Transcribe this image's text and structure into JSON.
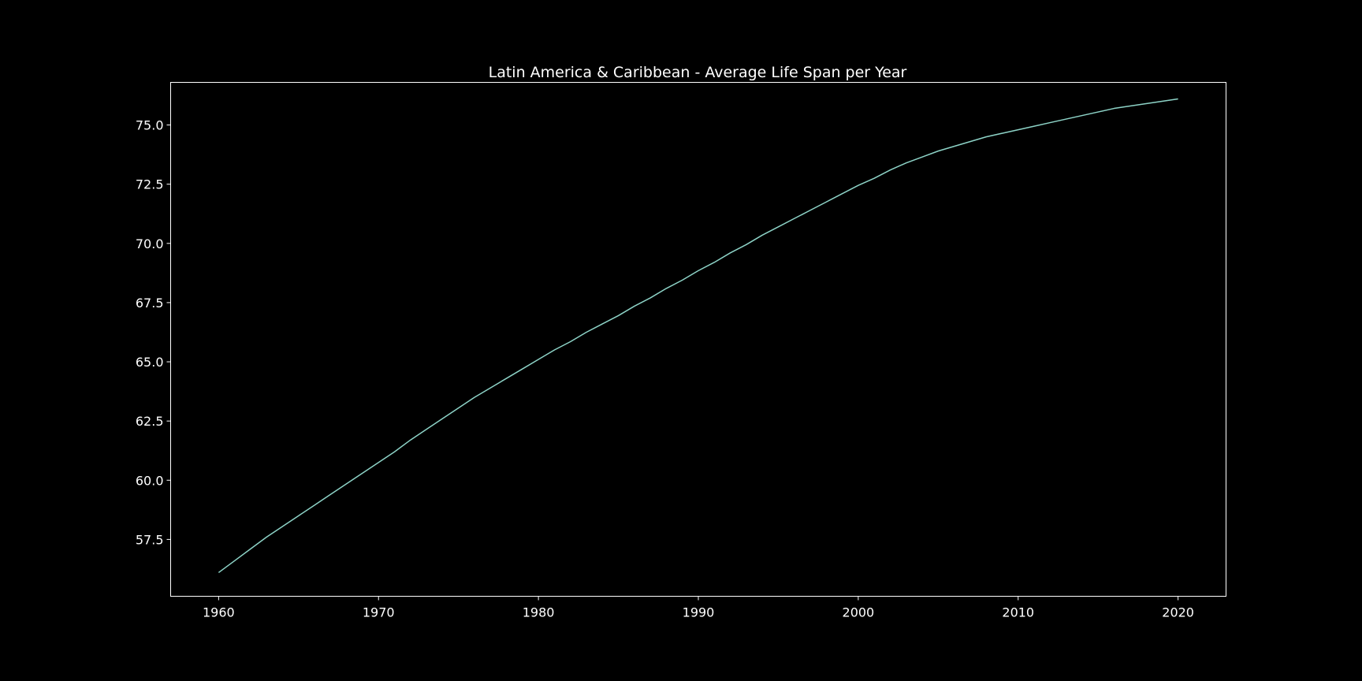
{
  "chart_data": {
    "type": "line",
    "title": "Latin America & Caribbean - Average Life Span per Year",
    "xlabel": "",
    "ylabel": "",
    "xlim": [
      1957,
      2023
    ],
    "ylim": [
      55.1,
      76.8
    ],
    "grid": false,
    "legend": "none",
    "x_ticks": [
      1960,
      1970,
      1980,
      1990,
      2000,
      2010,
      2020
    ],
    "x_tick_labels": [
      "1960",
      "1970",
      "1980",
      "1990",
      "2000",
      "2010",
      "2020"
    ],
    "y_ticks": [
      57.5,
      60.0,
      62.5,
      65.0,
      67.5,
      70.0,
      72.5,
      75.0
    ],
    "y_tick_labels": [
      "57.5",
      "60.0",
      "62.5",
      "65.0",
      "67.5",
      "70.0",
      "72.5",
      "75.0"
    ],
    "series": [
      {
        "color": "#8dd3c7",
        "x": [
          1960,
          1961,
          1962,
          1963,
          1964,
          1965,
          1966,
          1967,
          1968,
          1969,
          1970,
          1971,
          1972,
          1973,
          1974,
          1975,
          1976,
          1977,
          1978,
          1979,
          1980,
          1981,
          1982,
          1983,
          1984,
          1985,
          1986,
          1987,
          1988,
          1989,
          1990,
          1991,
          1992,
          1993,
          1994,
          1995,
          1996,
          1997,
          1998,
          1999,
          2000,
          2001,
          2002,
          2003,
          2004,
          2005,
          2006,
          2007,
          2008,
          2009,
          2010,
          2011,
          2012,
          2013,
          2014,
          2015,
          2016,
          2017,
          2018,
          2019,
          2020
        ],
        "values": [
          56.1,
          56.6,
          57.1,
          57.6,
          58.05,
          58.5,
          58.95,
          59.4,
          59.85,
          60.3,
          60.75,
          61.2,
          61.7,
          62.15,
          62.6,
          63.05,
          63.5,
          63.9,
          64.3,
          64.7,
          65.1,
          65.5,
          65.85,
          66.25,
          66.6,
          66.95,
          67.35,
          67.7,
          68.1,
          68.45,
          68.85,
          69.2,
          69.6,
          69.95,
          70.35,
          70.7,
          71.05,
          71.4,
          71.75,
          72.1,
          72.45,
          72.75,
          73.1,
          73.4,
          73.65,
          73.9,
          74.1,
          74.3,
          74.5,
          74.65,
          74.8,
          74.95,
          75.1,
          75.25,
          75.4,
          75.55,
          75.7,
          75.8,
          75.9,
          76.0,
          76.1
        ]
      }
    ]
  }
}
